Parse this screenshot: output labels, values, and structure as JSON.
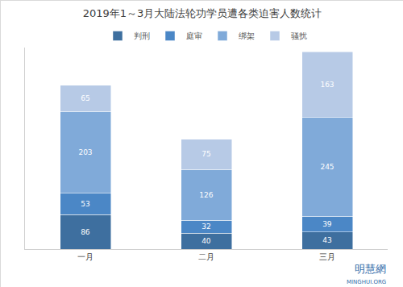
{
  "chart_data": {
    "type": "bar",
    "title": "2019年1～3月大陆法轮功学员遭各类迫害人数统计",
    "categories": [
      "一月",
      "二月",
      "三月"
    ],
    "series": [
      {
        "name": "判刑",
        "color": "#3e6f9f",
        "values": [
          86,
          40,
          43
        ]
      },
      {
        "name": "庭审",
        "color": "#4b87c6",
        "values": [
          53,
          32,
          39
        ]
      },
      {
        "name": "绑架",
        "color": "#80aad9",
        "values": [
          203,
          126,
          245
        ]
      },
      {
        "name": "骚扰",
        "color": "#b7cae6",
        "values": [
          65,
          75,
          163
        ]
      }
    ],
    "stacked": true,
    "data_labels": true,
    "legend": "top",
    "grid": false,
    "tick_labels": "x",
    "ylim": [
      0,
      500
    ],
    "yticks": [],
    "annotations": [
      "明慧網",
      "MINGHUI.ORG"
    ]
  }
}
